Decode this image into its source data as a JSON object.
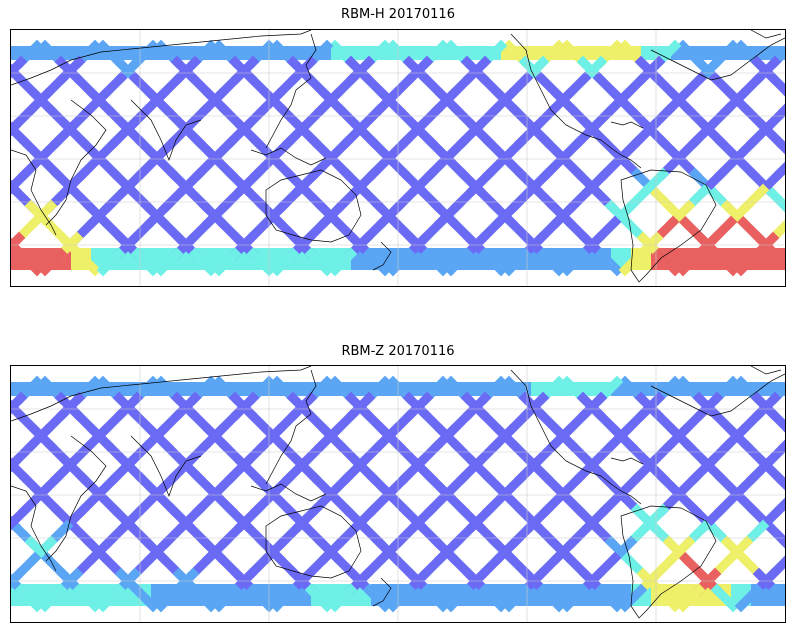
{
  "panels": [
    {
      "id": "rbm_h",
      "title": "RBM-H 20170116"
    },
    {
      "id": "rbm_z",
      "title": "RBM-Z 20170116"
    }
  ],
  "colors": {
    "low": "#6a6af5",
    "mid_low": "#5aa6f5",
    "mid": "#6ff0e6",
    "mid_high": "#eef06a",
    "high": "#e86060",
    "coast": "#000000",
    "grid": "#cccccc"
  }
}
